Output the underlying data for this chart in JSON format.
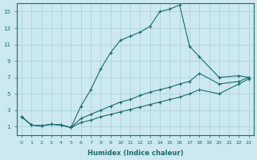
{
  "xlabel": "Humidex (Indice chaleur)",
  "background_color": "#cce9f0",
  "grid_color": "#aacdd6",
  "line_color": "#1a6b6b",
  "xlim": [
    -0.5,
    23.5
  ],
  "ylim": [
    0,
    16
  ],
  "xticks": [
    0,
    1,
    2,
    3,
    4,
    5,
    6,
    7,
    8,
    9,
    10,
    11,
    12,
    13,
    14,
    15,
    16,
    17,
    18,
    19,
    20,
    21,
    22,
    23
  ],
  "yticks": [
    1,
    3,
    5,
    7,
    9,
    11,
    13,
    15
  ],
  "line1_x": [
    0,
    1,
    2,
    3,
    4,
    5,
    6,
    7,
    8,
    9,
    10,
    11,
    12,
    13,
    14,
    15,
    16,
    17,
    18,
    20,
    22,
    23
  ],
  "line1_y": [
    2.2,
    1.2,
    1.1,
    1.3,
    1.2,
    0.9,
    3.5,
    5.5,
    8.0,
    10.0,
    11.5,
    12.0,
    12.5,
    13.2,
    15.0,
    15.3,
    15.8,
    10.8,
    9.5,
    7.0,
    7.2,
    7.0
  ],
  "line2_x": [
    0,
    1,
    2,
    3,
    4,
    5,
    6,
    7,
    8,
    9,
    10,
    11,
    12,
    13,
    14,
    15,
    16,
    17,
    18,
    20,
    22,
    23
  ],
  "line2_y": [
    2.2,
    1.2,
    1.1,
    1.3,
    1.2,
    0.9,
    2.0,
    2.5,
    3.0,
    3.5,
    4.0,
    4.3,
    4.8,
    5.2,
    5.5,
    5.8,
    6.2,
    6.5,
    7.5,
    6.2,
    6.5,
    7.0
  ],
  "line3_x": [
    0,
    1,
    2,
    3,
    4,
    5,
    6,
    7,
    8,
    9,
    10,
    11,
    12,
    13,
    14,
    15,
    16,
    17,
    18,
    20,
    22,
    23
  ],
  "line3_y": [
    2.2,
    1.2,
    1.1,
    1.3,
    1.2,
    0.9,
    1.5,
    1.8,
    2.2,
    2.5,
    2.8,
    3.1,
    3.4,
    3.7,
    4.0,
    4.3,
    4.6,
    5.0,
    5.5,
    5.0,
    6.2,
    6.8
  ]
}
